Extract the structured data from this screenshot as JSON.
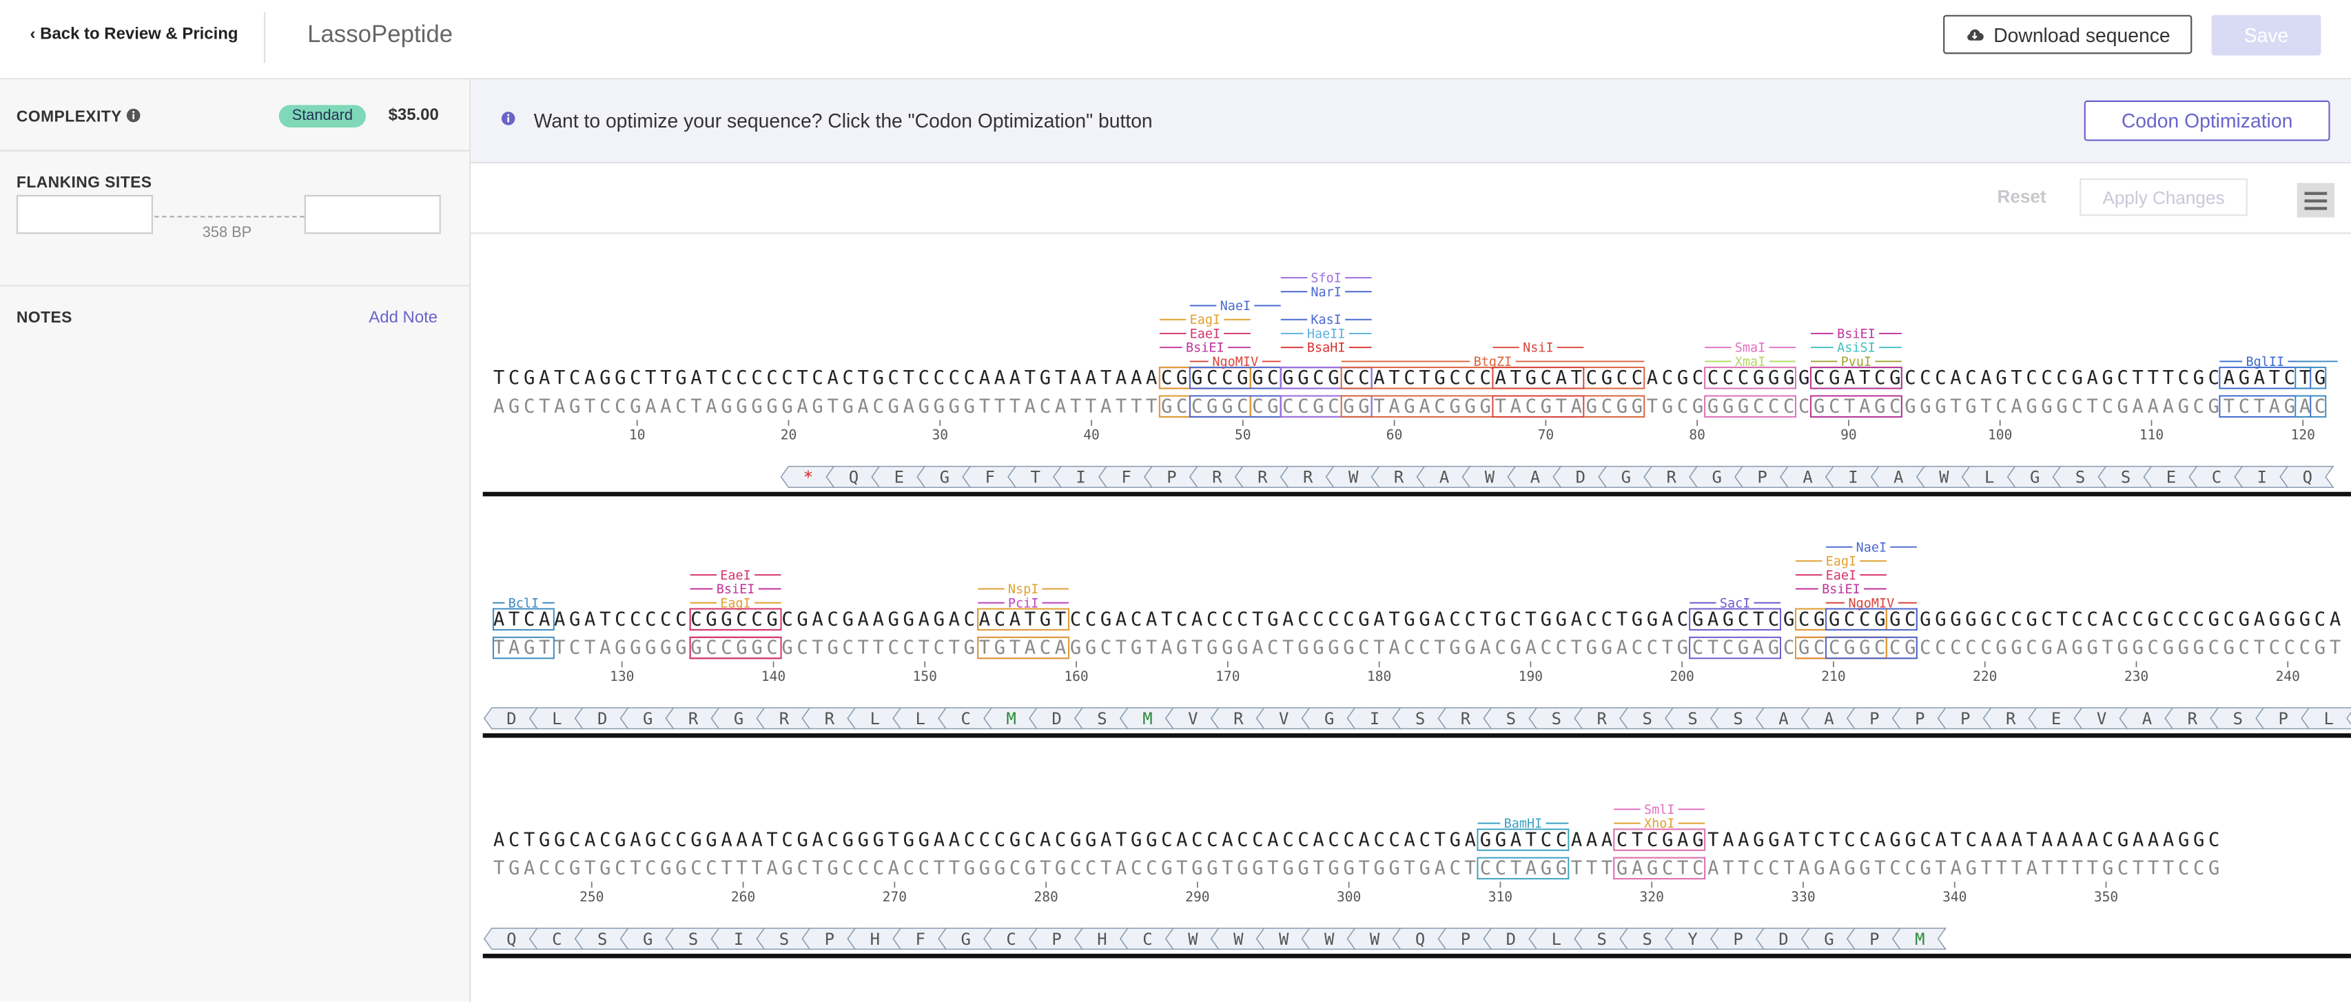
{
  "header": {
    "back": "Back to Review & Pricing",
    "title": "LassoPeptide",
    "download": "Download sequence",
    "save": "Save"
  },
  "sidebar": {
    "complexity_label": "COMPLEXITY",
    "complexity_level": "Standard",
    "price": "$35.00",
    "flanking_label": "FLANKING SITES",
    "length": "358 BP",
    "notes_label": "NOTES",
    "add_note": "Add Note"
  },
  "banner": {
    "message": "Want to optimize your sequence? Click the \"Codon Optimization\" button",
    "button": "Codon Optimization"
  },
  "toolbar": {
    "reset": "Reset",
    "apply": "Apply Changes"
  },
  "sequence": {
    "rows": [
      {
        "forward": "TCGATCAGGCTTGATCCCCCTCACTGCTCCCCAAATGTAATAAACGGCCGGCGGCGCCATCTGCCCATGCATCGCCACGCCCCGGGGCGATCGCCCACAGTCCCGAGCTTTCGCAGATCTG",
        "reverse": "AGCTAGTCCGAACTAGGGGGAGTGACGAGGGGTTTACATTATTTGCCGGCCGCCGCGGTAGACGGGTACGTAGCGGTGCGGGGCCCCGCTAGCGGGTGTCAGGGCTCGAAAGCGTCTAGAC",
        "ticks": [
          10,
          20,
          30,
          40,
          50,
          60,
          70,
          80,
          90,
          100,
          110,
          120
        ],
        "translation": [
          "*",
          "Q",
          "E",
          "G",
          "F",
          "T",
          "I",
          "F",
          "P",
          "R",
          "R",
          "R",
          "W",
          "R",
          "A",
          "W",
          "A",
          "D",
          "G",
          "R",
          "G",
          "P",
          "A",
          "I",
          "A",
          "W",
          "L",
          "G",
          "S",
          "S",
          "E",
          "C",
          "I",
          "Q"
        ]
      },
      {
        "forward": "ATCAAGATCCCCCCGGCCGCGACGAAGGAGACACATGTCCGACATCACCCTGACCCCGATGGACCTGCTGGACCTGGACGAGCTCGCGGCCGGCGGGGGCCGCTCCACCGCCCGCGAGGGCA",
        "reverse": "TAGTTCTAGGGGGGCCGGCGCTGCTTCCTCTGTGTACAGGCTGTAGTGGGACTGGGGCTACCTGGACGACCTGGACCTGCTCGAGCGCCGGCCGCCCCCGGCGAGGTGGCGGGCGCTCCCGT",
        "ticks": [
          130,
          140,
          150,
          160,
          170,
          180,
          190,
          200,
          210,
          220,
          230,
          240
        ],
        "translation": [
          "D",
          "L",
          "D",
          "G",
          "R",
          "G",
          "R",
          "R",
          "L",
          "L",
          "C",
          "M",
          "D",
          "S",
          "M",
          "V",
          "R",
          "V",
          "G",
          "I",
          "S",
          "R",
          "S",
          "S",
          "R",
          "S",
          "S",
          "S",
          "A",
          "A",
          "P",
          "P",
          "P",
          "R",
          "E",
          "V",
          "A",
          "R",
          "S",
          "P",
          "L"
        ]
      },
      {
        "forward": "ACTGGCACGAGCCGGAAATCGACGGGTGGAACCCGCACGGATGGCACCACCACCACCACCACTGAGGATCCAAACTCGAGTAAGGATCTCCAGGCATCAAATAAAACGAAAGGC",
        "reverse": "TGACCGTGCTCGGCCTTTAGCTGCCCACCTTGGGCGTGCCTACCGTGGTGGTGGTGGTGGTGACTCCTAGGTTTGAGCTCATTCCTAGAGGTCCGTAGTTTATTTTGCTTTCCG",
        "ticks": [
          250,
          260,
          270,
          280,
          290,
          300,
          310,
          320,
          330,
          340,
          350
        ],
        "translation": [
          "Q",
          "C",
          "S",
          "G",
          "S",
          "I",
          "S",
          "P",
          "H",
          "F",
          "G",
          "C",
          "P",
          "H",
          "C",
          "W",
          "W",
          "W",
          "W",
          "W",
          "Q",
          "P",
          "D",
          "L",
          "S",
          "S",
          "Y",
          "P",
          "D",
          "G",
          "P",
          "M"
        ]
      }
    ],
    "enzymes": [
      {
        "name": "NgoMIV",
        "start": 47,
        "end": 52,
        "color": "#d9443a"
      },
      {
        "name": "BsiEI",
        "start": 45,
        "end": 50,
        "color": "#c0329a"
      },
      {
        "name": "EaeI",
        "start": 45,
        "end": 50,
        "color": "#d6336c"
      },
      {
        "name": "EagI",
        "start": 45,
        "end": 50,
        "color": "#e0a030"
      },
      {
        "name": "BsaHI",
        "start": 53,
        "end": 58,
        "color": "#d93030"
      },
      {
        "name": "HaeII",
        "start": 53,
        "end": 58,
        "color": "#5ab0e0"
      },
      {
        "name": "KasI",
        "start": 53,
        "end": 58,
        "color": "#4a6ad0"
      },
      {
        "name": "NaeI",
        "start": 47,
        "end": 52,
        "color": "#4a6ad0"
      },
      {
        "name": "NarI",
        "start": 53,
        "end": 58,
        "color": "#4a6ad0"
      },
      {
        "name": "SfoI",
        "start": 53,
        "end": 58,
        "color": "#a070e0"
      },
      {
        "name": "BtgZI",
        "start": 57,
        "end": 76,
        "color": "#d9623b"
      },
      {
        "name": "NsiI",
        "start": 67,
        "end": 72,
        "color": "#d9443a"
      },
      {
        "name": "XmaI",
        "start": 81,
        "end": 86,
        "color": "#b0d860"
      },
      {
        "name": "SmaI",
        "start": 81,
        "end": 86,
        "color": "#e070c0"
      },
      {
        "name": "PvuI",
        "start": 88,
        "end": 93,
        "color": "#a0a030"
      },
      {
        "name": "AsiSI",
        "start": 88,
        "end": 93,
        "color": "#40c0c0"
      },
      {
        "name": "BsiEI",
        "start": 88,
        "end": 93,
        "color": "#c0329a"
      },
      {
        "name": "BglII",
        "start": 115,
        "end": 120,
        "color": "#3a6ad0"
      },
      {
        "name": "BclI",
        "start": 120,
        "end": 125,
        "color": "#3a8ac0"
      },
      {
        "name": "EagI",
        "start": 135,
        "end": 140,
        "color": "#e0a030"
      },
      {
        "name": "BsiEI",
        "start": 135,
        "end": 140,
        "color": "#c0329a"
      },
      {
        "name": "EaeI",
        "start": 135,
        "end": 140,
        "color": "#d6336c"
      },
      {
        "name": "PciI",
        "start": 154,
        "end": 159,
        "color": "#c040c0"
      },
      {
        "name": "NspI",
        "start": 154,
        "end": 159,
        "color": "#e0a030"
      },
      {
        "name": "SacI",
        "start": 201,
        "end": 206,
        "color": "#6a5ad0"
      },
      {
        "name": "NgoMIV",
        "start": 210,
        "end": 215,
        "color": "#d9443a"
      },
      {
        "name": "BsiEI",
        "start": 208,
        "end": 213,
        "color": "#c0329a"
      },
      {
        "name": "EaeI",
        "start": 208,
        "end": 213,
        "color": "#d6336c"
      },
      {
        "name": "EagI",
        "start": 208,
        "end": 213,
        "color": "#e0a030"
      },
      {
        "name": "NaeI",
        "start": 210,
        "end": 215,
        "color": "#4a6ad0"
      },
      {
        "name": "BamHI",
        "start": 309,
        "end": 314,
        "color": "#3aa0c0"
      },
      {
        "name": "XhoI",
        "start": 318,
        "end": 323,
        "color": "#e0a030"
      },
      {
        "name": "SmlI",
        "start": 318,
        "end": 323,
        "color": "#e070c0"
      }
    ]
  }
}
